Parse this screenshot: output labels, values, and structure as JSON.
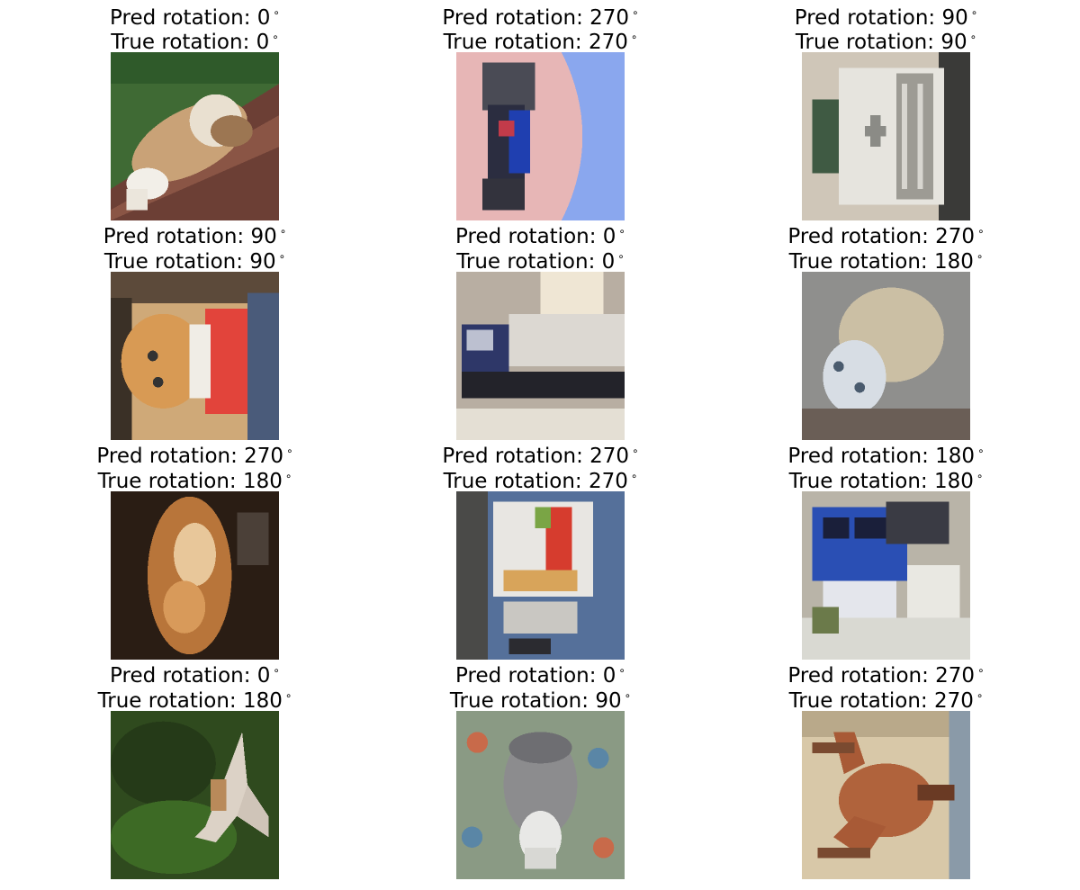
{
  "pred_prefix": "Pred rotation:",
  "true_prefix": "True rotation:",
  "degree_symbol": "∘",
  "panels": [
    {
      "pred": "0",
      "true": "0",
      "subject": "dog lying on a wooden bench"
    },
    {
      "pred": "270",
      "true": "270",
      "subject": "blue truck"
    },
    {
      "pred": "90",
      "true": "90",
      "subject": "white truck"
    },
    {
      "pred": "90",
      "true": "90",
      "subject": "cat"
    },
    {
      "pred": "0",
      "true": "0",
      "subject": "tanker truck"
    },
    {
      "pred": "270",
      "true": "180",
      "subject": "cat"
    },
    {
      "pred": "270",
      "true": "180",
      "subject": "cat"
    },
    {
      "pred": "270",
      "true": "270",
      "subject": "truck"
    },
    {
      "pred": "180",
      "true": "180",
      "subject": "blue truck"
    },
    {
      "pred": "0",
      "true": "180",
      "subject": "bird"
    },
    {
      "pred": "0",
      "true": "90",
      "subject": "cat"
    },
    {
      "pred": "270",
      "true": "270",
      "subject": "horse"
    }
  ]
}
